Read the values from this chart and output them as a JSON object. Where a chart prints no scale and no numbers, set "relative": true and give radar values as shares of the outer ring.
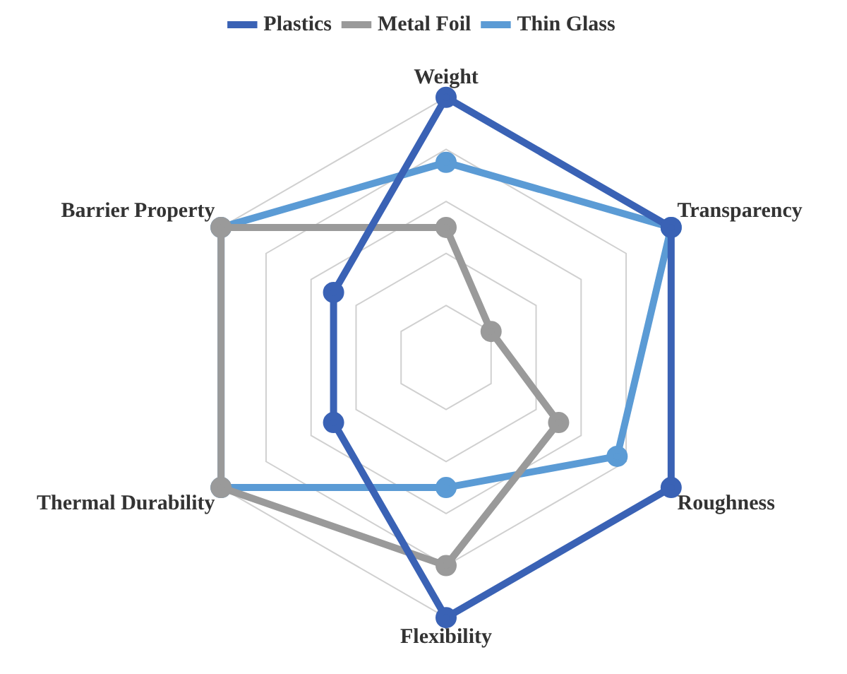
{
  "chart_data": {
    "type": "radar",
    "relative": true,
    "legend": "top",
    "marker": "circle",
    "grid": true,
    "categories": [
      "Weight",
      "Transparency",
      "Roughness",
      "Flexibility",
      "Thermal Durability",
      "Barrier Property"
    ],
    "series": [
      {
        "name": "Plastics",
        "color": "#3a62b5",
        "values": [
          1,
          1,
          1,
          1,
          0.5,
          0.5
        ]
      },
      {
        "name": "Metal Foil",
        "color": "#9a9a9a",
        "values": [
          0.5,
          0.2,
          0.5,
          0.8,
          1,
          1
        ]
      },
      {
        "name": "Thin Glass",
        "color": "#5b9bd5",
        "values": [
          0.75,
          1,
          0.76,
          0.5,
          1,
          1
        ]
      }
    ]
  }
}
